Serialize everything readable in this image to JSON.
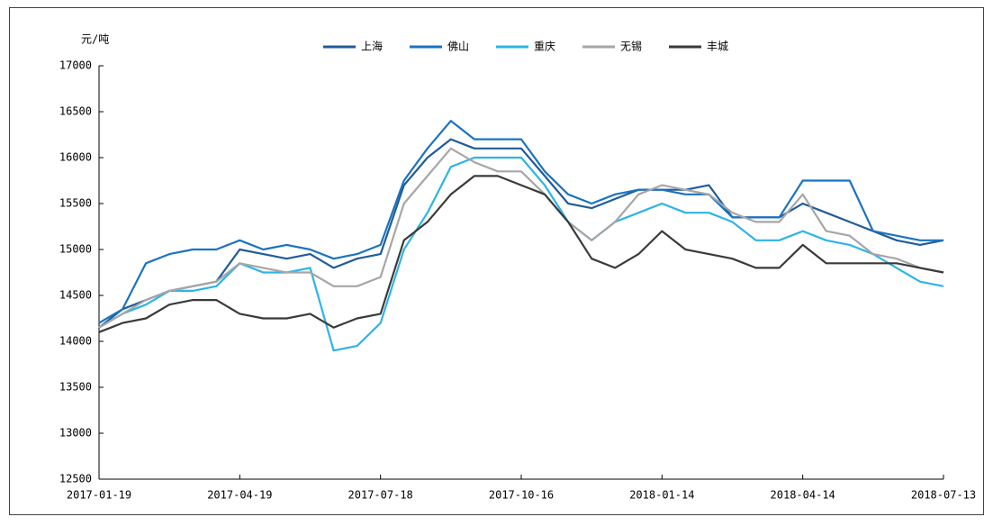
{
  "chart_data": {
    "type": "line",
    "y_axis_label": "元/吨",
    "x": [
      "2017-01-19",
      "2017-02-03",
      "2017-02-18",
      "2017-03-05",
      "2017-03-20",
      "2017-04-04",
      "2017-04-19",
      "2017-05-04",
      "2017-05-19",
      "2017-06-03",
      "2017-06-18",
      "2017-07-03",
      "2017-07-18",
      "2017-08-02",
      "2017-08-17",
      "2017-09-01",
      "2017-09-16",
      "2017-10-01",
      "2017-10-16",
      "2017-10-31",
      "2017-11-15",
      "2017-11-30",
      "2017-12-15",
      "2017-12-30",
      "2018-01-14",
      "2018-01-29",
      "2018-02-13",
      "2018-02-28",
      "2018-03-15",
      "2018-03-30",
      "2018-04-14",
      "2018-04-29",
      "2018-05-14",
      "2018-05-29",
      "2018-06-13",
      "2018-06-28",
      "2018-07-13"
    ],
    "series": [
      {
        "name": "上海",
        "color": "#1f5c99",
        "values": [
          14150,
          14350,
          14450,
          14550,
          14600,
          14650,
          15000,
          14950,
          14900,
          14950,
          14800,
          14900,
          14950,
          15700,
          16000,
          16200,
          16100,
          16100,
          16100,
          15800,
          15500,
          15450,
          15550,
          15650,
          15650,
          15650,
          15700,
          15350,
          15350,
          15350,
          15500,
          15400,
          15300,
          15200,
          15100,
          15050,
          15100
        ]
      },
      {
        "name": "佛山",
        "color": "#1a73c2",
        "values": [
          14200,
          14350,
          14850,
          14950,
          15000,
          15000,
          15100,
          15000,
          15050,
          15000,
          14900,
          14950,
          15050,
          15750,
          16100,
          16400,
          16200,
          16200,
          16200,
          15850,
          15600,
          15500,
          15600,
          15650,
          15650,
          15600,
          15600,
          15350,
          15350,
          15350,
          15750,
          15750,
          15750,
          15200,
          15150,
          15100,
          15100
        ]
      },
      {
        "name": "重庆",
        "color": "#2db4e6",
        "values": [
          14150,
          14300,
          14400,
          14550,
          14550,
          14600,
          14850,
          14750,
          14750,
          14800,
          13900,
          13950,
          14200,
          15000,
          15400,
          15900,
          16000,
          16000,
          16000,
          15700,
          15300,
          15100,
          15300,
          15400,
          15500,
          15400,
          15400,
          15300,
          15100,
          15100,
          15200,
          15100,
          15050,
          14950,
          14800,
          14650,
          14600
        ]
      },
      {
        "name": "无锡",
        "color": "#a6a6a6",
        "values": [
          14150,
          14300,
          14450,
          14550,
          14600,
          14650,
          14850,
          14800,
          14750,
          14750,
          14600,
          14600,
          14700,
          15500,
          15800,
          16100,
          15950,
          15850,
          15850,
          15600,
          15300,
          15100,
          15300,
          15600,
          15700,
          15650,
          15600,
          15400,
          15300,
          15300,
          15600,
          15200,
          15150,
          14950,
          14900,
          14800,
          14750
        ]
      },
      {
        "name": "丰城",
        "color": "#3a3a3a",
        "values": [
          14100,
          14200,
          14250,
          14400,
          14450,
          14450,
          14300,
          14250,
          14250,
          14300,
          14150,
          14250,
          14300,
          15100,
          15300,
          15600,
          15800,
          15800,
          15700,
          15600,
          15300,
          14900,
          14800,
          14950,
          15200,
          15000,
          14950,
          14900,
          14800,
          14800,
          15050,
          14850,
          14850,
          14850,
          14850,
          14800,
          14750
        ]
      }
    ],
    "xlim": [
      "2017-01-19",
      "2018-07-13"
    ],
    "xticks": [
      "2017-01-19",
      "2017-04-19",
      "2017-07-18",
      "2017-10-16",
      "2018-01-14",
      "2018-04-14",
      "2018-07-13"
    ],
    "ylim": [
      12500,
      17000
    ],
    "yticks": [
      12500,
      13000,
      13500,
      14000,
      14500,
      15000,
      15500,
      16000,
      16500,
      17000
    ],
    "grid": false,
    "legend": "top"
  }
}
